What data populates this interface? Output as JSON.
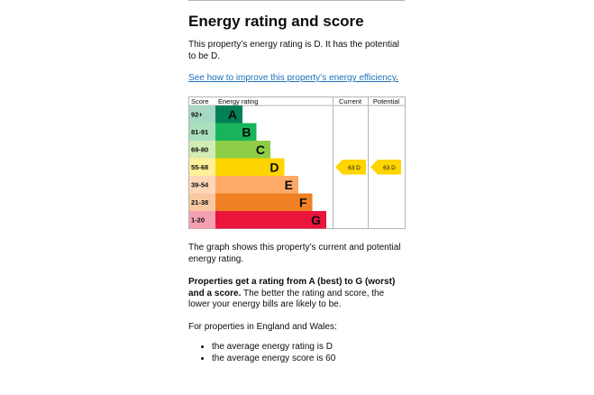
{
  "heading": "Energy rating and score",
  "intro": "This property’s energy rating is D. It has the potential to be D.",
  "improve_link": "See how to improve this property’s energy efficiency",
  "improve_link_suffix": ".",
  "chart_data": {
    "type": "table",
    "columns": [
      "Score",
      "Energy rating",
      "Current",
      "Potential"
    ],
    "bands": [
      {
        "range": "92+",
        "letter": "A",
        "color": "#008054"
      },
      {
        "range": "81-91",
        "letter": "B",
        "color": "#19b459"
      },
      {
        "range": "69-80",
        "letter": "C",
        "color": "#8dce46"
      },
      {
        "range": "55-68",
        "letter": "D",
        "color": "#ffd500"
      },
      {
        "range": "39-54",
        "letter": "E",
        "color": "#fcaa65"
      },
      {
        "range": "21-38",
        "letter": "F",
        "color": "#ef8023"
      },
      {
        "range": "1-20",
        "letter": "G",
        "color": "#e9153b"
      }
    ],
    "current": {
      "score": 63,
      "band": "D",
      "label": "63 D"
    },
    "potential": {
      "score": 63,
      "band": "D",
      "label": "63 D"
    }
  },
  "graph_text": "The graph shows this property’s current and potential energy rating.",
  "bold_text": "Properties get a rating from A (best) to G (worst) and a score.",
  "bold_followup": " The better the rating and score, the lower your energy bills are likely to be.",
  "regions_text": "For properties in England and Wales:",
  "averages": [
    "the average energy rating is D",
    "the average energy score is 60"
  ]
}
